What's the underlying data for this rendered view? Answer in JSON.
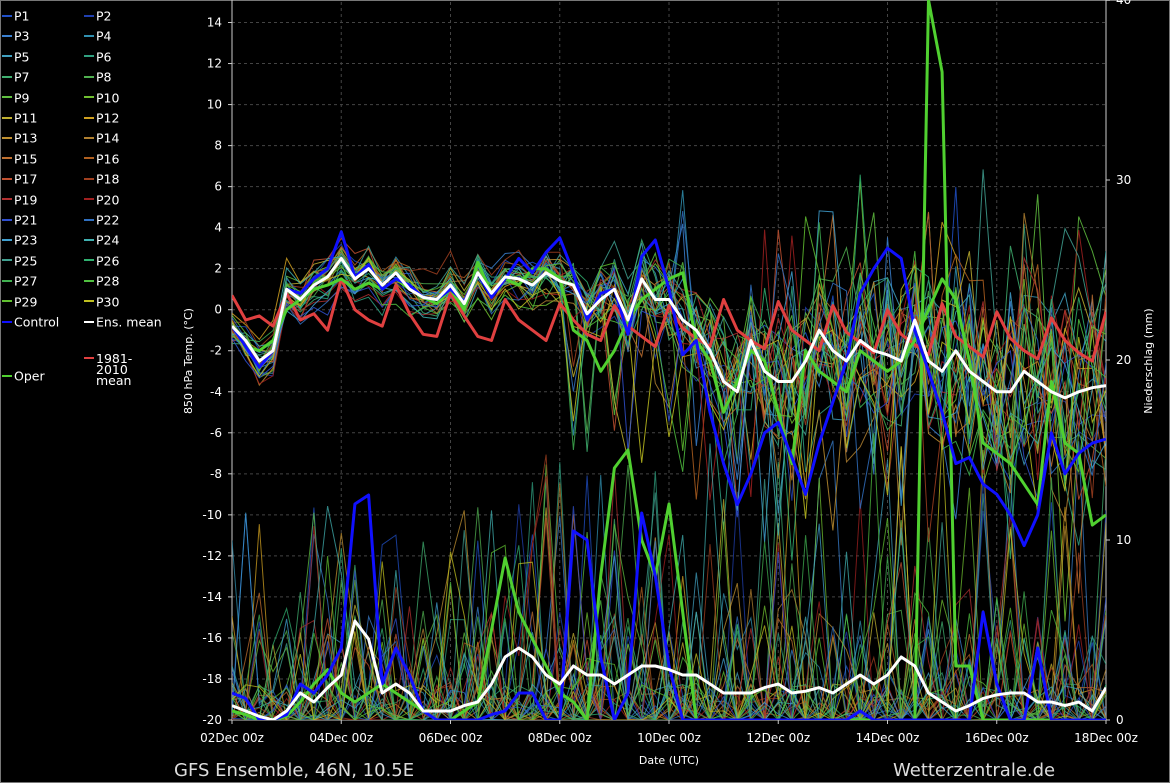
{
  "footer": {
    "left": "GFS Ensemble, 46N, 10.5E",
    "right": "Wetterzentrale.de"
  },
  "legend": [
    {
      "label": "P1",
      "color": "#2050c8"
    },
    {
      "label": "P2",
      "color": "#2040b0"
    },
    {
      "label": "P3",
      "color": "#3a80d0"
    },
    {
      "label": "P4",
      "color": "#3090b0"
    },
    {
      "label": "P5",
      "color": "#40a0c0"
    },
    {
      "label": "P6",
      "color": "#30a080"
    },
    {
      "label": "P7",
      "color": "#40b070"
    },
    {
      "label": "P8",
      "color": "#50b050"
    },
    {
      "label": "P9",
      "color": "#60c040"
    },
    {
      "label": "P10",
      "color": "#70c030"
    },
    {
      "label": "P11",
      "color": "#c0b030"
    },
    {
      "label": "P12",
      "color": "#d0a020"
    },
    {
      "label": "P13",
      "color": "#c09030"
    },
    {
      "label": "P14",
      "color": "#b08030"
    },
    {
      "label": "P15",
      "color": "#c07030"
    },
    {
      "label": "P16",
      "color": "#b06020"
    },
    {
      "label": "P17",
      "color": "#c05030"
    },
    {
      "label": "P18",
      "color": "#a04020"
    },
    {
      "label": "P19",
      "color": "#b03030"
    },
    {
      "label": "P20",
      "color": "#a02020"
    },
    {
      "label": "P21",
      "color": "#3050d0"
    },
    {
      "label": "P22",
      "color": "#3070c0"
    },
    {
      "label": "P23",
      "color": "#40a0d0"
    },
    {
      "label": "P24",
      "color": "#40b0b0"
    },
    {
      "label": "P25",
      "color": "#40a090"
    },
    {
      "label": "P26",
      "color": "#30b070"
    },
    {
      "label": "P27",
      "color": "#40b050"
    },
    {
      "label": "P28",
      "color": "#50c040"
    },
    {
      "label": "P29",
      "color": "#60c030"
    },
    {
      "label": "P30",
      "color": "#c0c020"
    },
    {
      "label": "Control",
      "color": "#1010ff"
    },
    {
      "label": "Ens. mean",
      "color": "#ffffff"
    },
    {
      "label": "1981-2010 mean",
      "color": "#e04040"
    },
    {
      "label": "Oper",
      "color": "#50d030"
    }
  ],
  "chart_data": {
    "type": "line",
    "title": "",
    "xlabel": "Date (UTC)",
    "ylabel": "850 hPa Temp. (°C)",
    "y2label": "Niederschlag (mm)",
    "ylim": [
      -20,
      15
    ],
    "y2lim": [
      0,
      40
    ],
    "yticks": [
      "-20",
      "-18",
      "-16",
      "-14",
      "-12",
      "-10",
      "-8",
      "-6",
      "-4",
      "-2",
      "0",
      "2",
      "4",
      "6",
      "8",
      "10",
      "12",
      "14"
    ],
    "y2ticks": [
      "0",
      "10",
      "20",
      "30",
      "40"
    ],
    "xticks": [
      "02Dec 00z",
      "04Dec 00z",
      "06Dec 00z",
      "08Dec 00z",
      "10Dec 00z",
      "12Dec 00z",
      "14Dec 00z",
      "16Dec 00z",
      "18Dec 00z"
    ],
    "x_days": [
      2,
      2.25,
      2.5,
      2.75,
      3,
      3.25,
      3.5,
      3.75,
      4,
      4.25,
      4.5,
      4.75,
      5,
      5.25,
      5.5,
      5.75,
      6,
      6.25,
      6.5,
      6.75,
      7,
      7.25,
      7.5,
      7.75,
      8,
      8.25,
      8.5,
      8.75,
      9,
      9.25,
      9.5,
      9.75,
      10,
      10.25,
      10.5,
      10.75,
      11,
      11.25,
      11.5,
      11.75,
      12,
      12.25,
      12.5,
      12.75,
      13,
      13.25,
      13.5,
      13.75,
      14,
      14.25,
      14.5,
      14.75,
      15,
      15.25,
      15.5,
      15.75,
      16,
      16.25,
      16.5,
      16.75,
      17,
      17.25,
      17.5,
      17.75,
      18
    ],
    "grid": true,
    "series": [
      {
        "name": "Control",
        "color": "#1010ff",
        "temp": [
          -0.8,
          -1.8,
          -2.8,
          -2.0,
          1.0,
          0.8,
          1.5,
          2.0,
          3.8,
          1.6,
          2.2,
          1.0,
          1.5,
          1.2,
          0.6,
          0.5,
          1.0,
          0.4,
          1.8,
          0.6,
          1.5,
          2.5,
          1.8,
          2.8,
          3.5,
          1.8,
          -0.5,
          0.8,
          1.0,
          -1.2,
          2.6,
          3.4,
          1.0,
          -2.2,
          -1.5,
          -5.0,
          -7.5,
          -9.5,
          -8.0,
          -6.0,
          -5.5,
          -7.2,
          -9.0,
          -6.5,
          -4.5,
          -2.5,
          0.8,
          2.0,
          3.0,
          2.5,
          -1.0,
          -3.0,
          -5.0,
          -7.5,
          -7.2,
          -8.5,
          -9.0,
          -10.0,
          -11.5,
          -10.0,
          -6.0,
          -8.0,
          -7.0,
          -6.5,
          -6.3
        ],
        "precip": [
          1.5,
          1.2,
          0,
          0,
          0.3,
          2.0,
          1.5,
          2.5,
          4.0,
          12,
          12.5,
          2.0,
          4,
          2.5,
          0.5,
          0,
          0,
          0,
          0,
          0.3,
          0.5,
          1.5,
          1.5,
          0,
          0,
          10.5,
          10,
          3.5,
          0,
          1.5,
          11.5,
          8,
          3,
          0,
          0,
          0,
          0,
          0,
          0,
          0,
          0,
          0,
          0,
          0,
          0,
          0,
          0.5,
          0,
          0,
          0,
          0,
          0,
          0,
          0,
          0,
          6,
          2,
          0,
          0,
          4,
          0,
          0,
          0,
          0,
          0
        ]
      },
      {
        "name": "Ens. mean",
        "color": "#ffffff",
        "temp": [
          -0.8,
          -1.5,
          -2.5,
          -2.0,
          1.0,
          0.5,
          1.2,
          1.6,
          2.5,
          1.5,
          2.0,
          1.2,
          1.8,
          1.0,
          0.6,
          0.5,
          1.2,
          0.3,
          1.8,
          0.8,
          1.6,
          1.5,
          1.2,
          1.8,
          1.4,
          1.2,
          -0.2,
          0.5,
          1.0,
          -0.5,
          1.5,
          0.5,
          0.5,
          -0.5,
          -1.0,
          -2.0,
          -3.5,
          -4.0,
          -1.5,
          -3.0,
          -3.5,
          -3.5,
          -2.5,
          -1.0,
          -2.0,
          -2.5,
          -1.5,
          -2.0,
          -2.2,
          -2.5,
          -0.5,
          -2.5,
          -3.0,
          -2.0,
          -3.0,
          -3.5,
          -4.0,
          -4.0,
          -3.0,
          -3.5,
          -4.0,
          -4.3,
          -4.0,
          -3.8,
          -3.7
        ],
        "precip": [
          0.8,
          0.5,
          0.2,
          0,
          0.5,
          1.5,
          1.0,
          1.8,
          2.5,
          5.5,
          4.5,
          1.5,
          2.0,
          1.5,
          0.5,
          0.5,
          0.5,
          0.8,
          1.0,
          2.0,
          3.5,
          4.0,
          3.5,
          2.5,
          2.0,
          3.0,
          2.5,
          2.5,
          2.0,
          2.5,
          3.0,
          3.0,
          2.8,
          2.5,
          2.5,
          2.0,
          1.5,
          1.5,
          1.5,
          1.8,
          2.0,
          1.5,
          1.6,
          1.8,
          1.5,
          2.0,
          2.5,
          2.0,
          2.5,
          3.5,
          3.0,
          1.5,
          1.0,
          0.5,
          0.8,
          1.2,
          1.4,
          1.5,
          1.5,
          1.0,
          1.0,
          0.8,
          1.0,
          0.5,
          1.8
        ]
      },
      {
        "name": "1981-2010 mean",
        "color": "#e04040",
        "temp": [
          0.7,
          -0.5,
          -0.3,
          -0.8,
          0.8,
          -0.5,
          -0.2,
          -1.0,
          1.5,
          0.0,
          -0.5,
          -0.8,
          1.2,
          -0.2,
          -1.2,
          -1.3,
          0.8,
          -0.3,
          -1.3,
          -1.5,
          0.5,
          -0.5,
          -1.0,
          -1.5,
          0.3,
          -0.5,
          -1.2,
          -1.5,
          0.2,
          -0.8,
          -1.3,
          -1.8,
          0.2,
          -0.9,
          -1.4,
          -1.8,
          0.5,
          -1.0,
          -1.5,
          -1.9,
          0.4,
          -1.0,
          -1.5,
          -2.0,
          0.2,
          -1.1,
          -1.6,
          -2.1,
          0.0,
          -1.2,
          -1.7,
          -2.2,
          0.3,
          -1.3,
          -1.8,
          -2.3,
          -0.1,
          -1.4,
          -2.0,
          -2.4,
          -0.4,
          -1.5,
          -2.1,
          -2.5,
          -0.1
        ],
        "precip": []
      },
      {
        "name": "Oper",
        "color": "#50d030",
        "temp": [
          -0.8,
          -1.8,
          -2.0,
          -1.5,
          0.0,
          0.5,
          1.0,
          1.2,
          1.5,
          1.0,
          1.3,
          1.0,
          1.5,
          1.0,
          0.6,
          0.3,
          1.0,
          0.0,
          2.3,
          0.8,
          1.5,
          1.2,
          2.0,
          2.0,
          1.5,
          -1.0,
          -1.5,
          -3.0,
          -2.0,
          -0.5,
          0.5,
          1.0,
          1.5,
          1.8,
          -1.5,
          -2.5,
          -5.0,
          -3.5,
          -2.0,
          -2.5,
          -5.0,
          -7.5,
          -2.0,
          -3.0,
          -3.5,
          -4.0,
          -2.0,
          -2.5,
          -3.0,
          -2.5,
          -1.5,
          0.0,
          1.5,
          0.5,
          -2.5,
          -6.5,
          -7.0,
          -7.5,
          -8.5,
          -9.5,
          -3.5,
          -6.5,
          -7.0,
          -10.5,
          -10.0
        ],
        "precip": [
          0.5,
          0.3,
          0,
          0,
          0.2,
          1.0,
          2.0,
          2.8,
          1.5,
          1.0,
          1.5,
          2.0,
          1.5,
          1.0,
          0.5,
          0,
          0,
          0.5,
          1.0,
          5.0,
          9.0,
          6.0,
          4.5,
          3.0,
          1.5,
          1.0,
          0,
          8.0,
          14.0,
          15.0,
          10.0,
          8.0,
          12.0,
          6.0,
          0,
          0,
          0,
          0,
          0,
          0,
          0,
          0,
          0,
          0,
          0,
          0,
          0,
          0,
          0,
          0,
          0,
          40,
          36,
          3,
          3,
          0,
          0,
          0,
          0,
          0,
          0,
          0,
          0,
          0,
          0
        ]
      }
    ]
  }
}
